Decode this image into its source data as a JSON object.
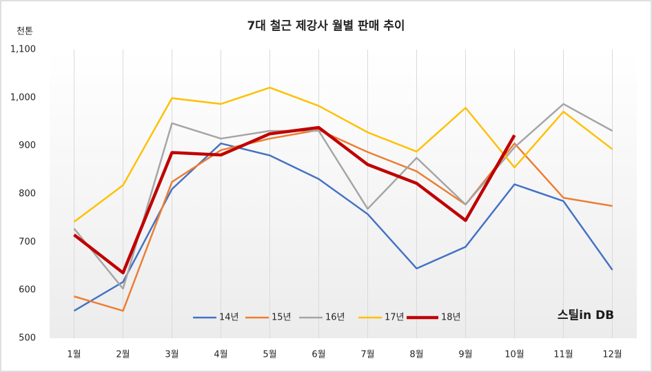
{
  "chart_data": {
    "type": "line",
    "title": "7대 철근 제강사 월별 판매 추이",
    "y_unit": "천톤",
    "watermark": "스틸in DB",
    "categories": [
      "1월",
      "2월",
      "3월",
      "4월",
      "5월",
      "6월",
      "7월",
      "8월",
      "9월",
      "10월",
      "11월",
      "12월"
    ],
    "ylim": [
      500,
      1100
    ],
    "yticks": [
      500,
      600,
      700,
      800,
      900,
      {
        "value": 1000,
        "label": "1,000"
      },
      {
        "value": 1100,
        "label": "1,100"
      }
    ],
    "grid": true,
    "legend": "bottom",
    "series": [
      {
        "name": "14년",
        "color": "#4472c4",
        "width": 2.5,
        "values": [
          557,
          617,
          810,
          905,
          880,
          831,
          758,
          645,
          690,
          820,
          785,
          642
        ]
      },
      {
        "name": "15년",
        "color": "#ed7d31",
        "width": 2.5,
        "values": [
          587,
          557,
          825,
          891,
          915,
          933,
          887,
          847,
          778,
          905,
          792,
          775
        ]
      },
      {
        "name": "16년",
        "color": "#a5a5a5",
        "width": 2.5,
        "values": [
          728,
          603,
          947,
          915,
          931,
          931,
          769,
          875,
          778,
          897,
          987,
          931
        ]
      },
      {
        "name": "17년",
        "color": "#ffc000",
        "width": 2.5,
        "values": [
          742,
          818,
          999,
          987,
          1021,
          983,
          928,
          888,
          979,
          855,
          971,
          893
        ]
      },
      {
        "name": "18년",
        "color": "#c00000",
        "width": 4.5,
        "values": [
          715,
          636,
          886,
          881,
          925,
          938,
          861,
          822,
          745,
          922,
          null,
          null
        ]
      }
    ]
  }
}
